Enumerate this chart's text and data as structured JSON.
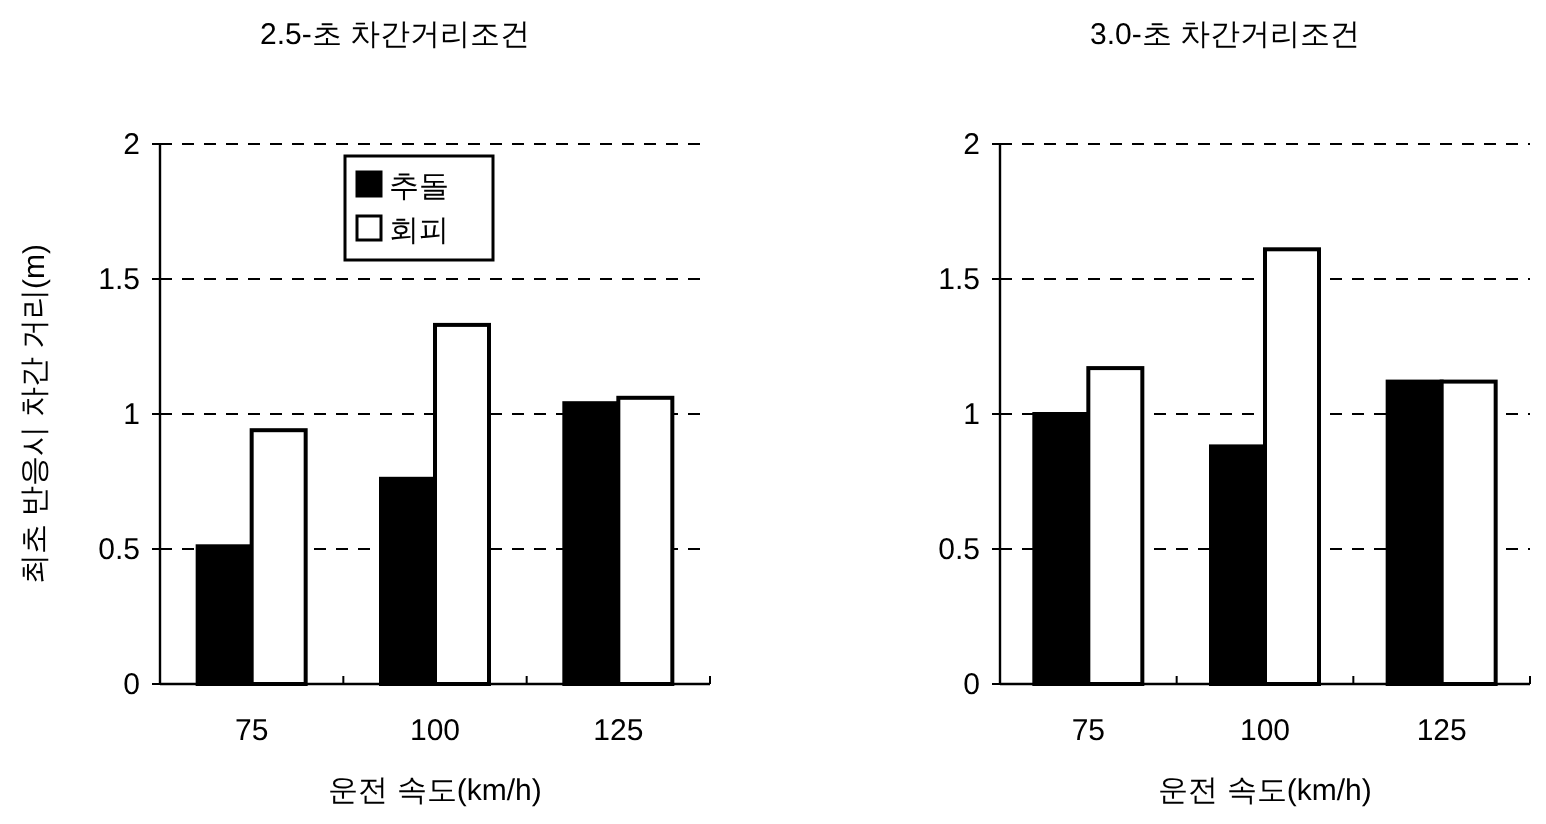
{
  "chart_data": [
    {
      "type": "bar",
      "title": "2.5-초 차간거리조건",
      "xlabel": "운전 속도(km/h)",
      "ylabel": "최초 반응시 차간 거리(m)",
      "categories": [
        "75",
        "100",
        "125"
      ],
      "series": [
        {
          "name": "추돌",
          "color": "#000000",
          "values": [
            0.51,
            0.76,
            1.04
          ]
        },
        {
          "name": "회피",
          "color": "#ffffff",
          "values": [
            0.94,
            1.33,
            1.06
          ]
        }
      ],
      "ylim": [
        0,
        2
      ],
      "yticks": [
        0,
        0.5,
        1,
        1.5,
        2
      ],
      "grid": "y",
      "legend": "top"
    },
    {
      "type": "bar",
      "title": "3.0-초 차간거리조건",
      "xlabel": "운전 속도(km/h)",
      "categories": [
        "75",
        "100",
        "125"
      ],
      "series": [
        {
          "color": "#000000",
          "values": [
            1.0,
            0.88,
            1.12
          ]
        },
        {
          "color": "#ffffff",
          "values": [
            1.17,
            1.61,
            1.12
          ]
        }
      ],
      "ylim": [
        0,
        2
      ],
      "yticks": [
        0,
        0.5,
        1,
        1.5,
        2
      ],
      "grid": "y"
    }
  ]
}
